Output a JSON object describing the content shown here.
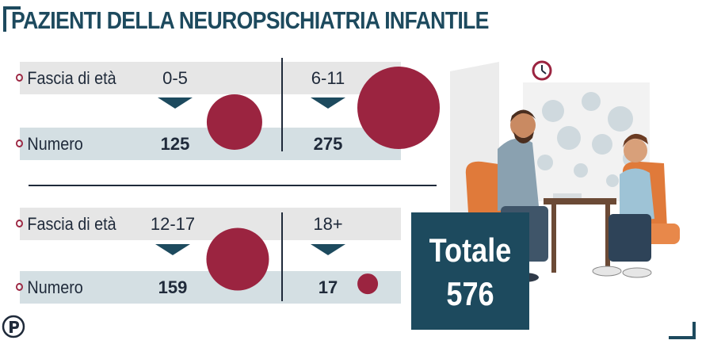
{
  "title": "PAZIENTI DELLA NEUROPSICHIATRIA INFANTILE",
  "row_labels": {
    "age": "Fascia di età",
    "count": "Numero"
  },
  "total": {
    "label": "Totale",
    "value": "576"
  },
  "colors": {
    "accent_dark": "#1d4a5e",
    "bubble": "#9b2440",
    "band_gray": "#e6e6e6",
    "band_blue": "#d4dfe3"
  },
  "icons": [
    "bullet-circle-icon",
    "down-arrow-icon",
    "publisher-logo-icon"
  ],
  "chart_data": {
    "type": "bubble",
    "title": "PAZIENTI DELLA NEUROPSICHIATRIA INFANTILE",
    "categories": [
      "0-5",
      "6-11",
      "12-17",
      "18+"
    ],
    "series": [
      {
        "name": "Numero",
        "values": [
          125,
          275,
          159,
          17
        ]
      }
    ],
    "total": 576
  }
}
